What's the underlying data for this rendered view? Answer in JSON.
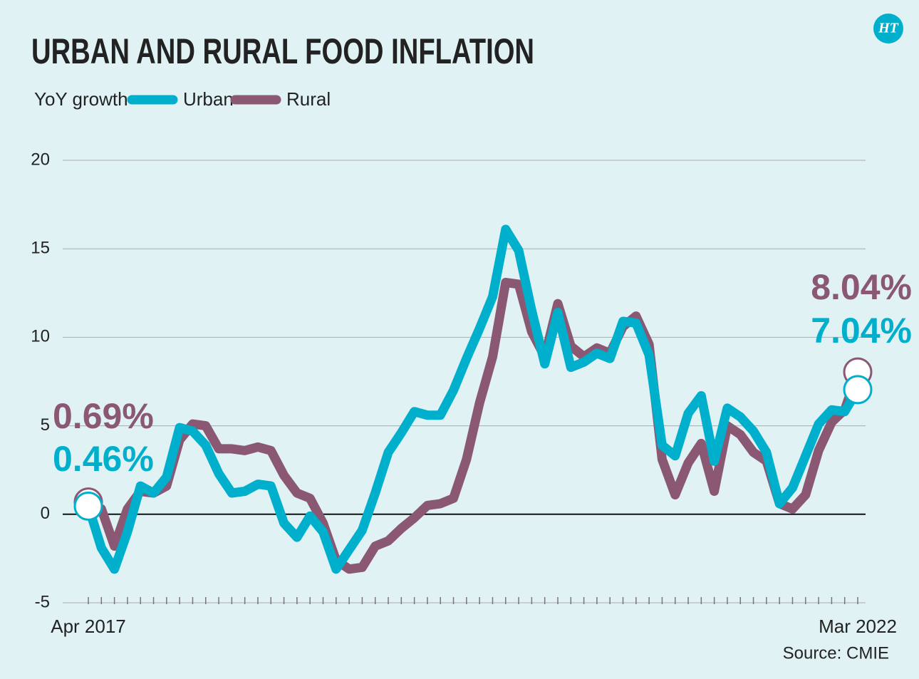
{
  "chart_data": {
    "type": "line",
    "title": "URBAN AND RURAL FOOD INFLATION",
    "y_label": "YoY growth",
    "source": "Source: CMIE",
    "brand": "HT",
    "categories": [
      "Apr 2017",
      null,
      null,
      null,
      null,
      null,
      null,
      null,
      null,
      null,
      null,
      null,
      null,
      null,
      null,
      null,
      null,
      null,
      null,
      null,
      null,
      null,
      null,
      null,
      null,
      null,
      null,
      null,
      null,
      null,
      null,
      null,
      null,
      null,
      null,
      null,
      null,
      null,
      null,
      null,
      null,
      null,
      null,
      null,
      null,
      null,
      null,
      null,
      null,
      null,
      null,
      null,
      null,
      null,
      null,
      null,
      null,
      null,
      null,
      "Mar 2022"
    ],
    "series": [
      {
        "name": "Urban",
        "color": "#00afcc",
        "values": [
          0.46,
          -1.9,
          -3.1,
          -1.0,
          1.6,
          1.2,
          2.1,
          4.9,
          4.7,
          3.9,
          2.3,
          1.2,
          1.3,
          1.7,
          1.6,
          -0.5,
          -1.3,
          -0.1,
          -1.0,
          -3.1,
          -2.0,
          -0.9,
          1.2,
          3.5,
          4.6,
          5.8,
          5.6,
          5.6,
          7.0,
          8.8,
          10.5,
          12.3,
          16.1,
          14.9,
          11.5,
          8.5,
          11.4,
          8.3,
          8.6,
          9.1,
          8.8,
          10.9,
          10.8,
          9.0,
          3.9,
          3.3,
          5.7,
          6.7,
          3.0,
          6.0,
          5.5,
          4.7,
          3.5,
          0.6,
          1.5,
          3.3,
          5.1,
          5.9,
          5.8,
          7.04
        ],
        "value_labels": [
          "0.46%",
          null,
          null,
          null,
          null,
          null,
          null,
          null,
          null,
          null,
          null,
          null,
          null,
          null,
          null,
          null,
          null,
          null,
          null,
          null,
          null,
          null,
          null,
          null,
          null,
          null,
          null,
          null,
          null,
          null,
          null,
          null,
          null,
          null,
          null,
          null,
          null,
          null,
          null,
          null,
          null,
          null,
          null,
          null,
          null,
          null,
          null,
          null,
          null,
          null,
          null,
          null,
          null,
          null,
          null,
          null,
          null,
          null,
          null,
          "7.04%"
        ]
      },
      {
        "name": "Rural",
        "color": "#8a5872",
        "values": [
          0.69,
          0.3,
          -1.8,
          0.3,
          1.3,
          1.2,
          1.6,
          4.2,
          5.1,
          5.0,
          3.7,
          3.7,
          3.6,
          3.8,
          3.6,
          2.2,
          1.2,
          0.9,
          -0.5,
          -2.6,
          -3.1,
          -3.0,
          -1.8,
          -1.5,
          -0.8,
          -0.2,
          0.5,
          0.6,
          0.9,
          3.1,
          6.3,
          8.9,
          13.1,
          13.0,
          10.3,
          8.9,
          11.9,
          9.5,
          8.9,
          9.4,
          9.1,
          10.6,
          11.2,
          9.6,
          3.1,
          1.1,
          2.9,
          4.0,
          1.3,
          5.0,
          4.5,
          3.5,
          3.0,
          0.6,
          0.3,
          1.1,
          3.6,
          5.2,
          5.9,
          8.04
        ],
        "value_labels": [
          "0.69%",
          null,
          null,
          null,
          null,
          null,
          null,
          null,
          null,
          null,
          null,
          null,
          null,
          null,
          null,
          null,
          null,
          null,
          null,
          null,
          null,
          null,
          null,
          null,
          null,
          null,
          null,
          null,
          null,
          null,
          null,
          null,
          null,
          null,
          null,
          null,
          null,
          null,
          null,
          null,
          null,
          null,
          null,
          null,
          null,
          null,
          null,
          null,
          null,
          null,
          null,
          null,
          null,
          null,
          null,
          null,
          null,
          null,
          null,
          "8.04%"
        ]
      }
    ],
    "ylim": [
      -5,
      20
    ],
    "yticks": [
      -5,
      0,
      5,
      10,
      15,
      20
    ],
    "grid": true
  }
}
